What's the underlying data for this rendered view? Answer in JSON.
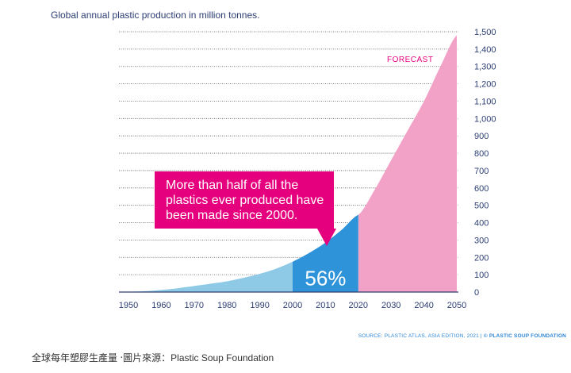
{
  "chart_data": {
    "type": "area",
    "title": "Global annual plastic production in million tonnes.",
    "x_ticks": [
      1950,
      1960,
      1970,
      1980,
      1990,
      2000,
      2010,
      2020,
      2030,
      2040,
      2050
    ],
    "y_ticks": [
      0,
      100,
      200,
      300,
      400,
      500,
      600,
      700,
      800,
      900,
      "1,000",
      "1,100",
      "1,200",
      "1,300",
      "1,400",
      "1,500"
    ],
    "xlim": [
      1950,
      2050
    ],
    "ylim": [
      0,
      1500
    ],
    "y_axis_position": "right",
    "grid": "horizontal dotted",
    "series": [
      {
        "x": [
          1950,
          1955,
          1960,
          1965,
          1970,
          1975,
          1980,
          1985,
          1990,
          1995,
          2000,
          2005,
          2010,
          2015,
          2020
        ],
        "values": [
          2,
          5,
          12,
          22,
          35,
          48,
          62,
          82,
          105,
          135,
          175,
          225,
          285,
          360,
          445
        ]
      },
      {
        "x": [
          2020,
          2025,
          2030,
          2035,
          2040,
          2045,
          2050
        ],
        "values": [
          445,
          590,
          760,
          930,
          1100,
          1300,
          1480
        ]
      }
    ],
    "highlight_range": [
      2000,
      2020
    ],
    "highlight_label": "56%",
    "forecast_label": "FORECAST",
    "annotation": "More than half of all the plastics ever produced have been made since 2000.",
    "colors": {
      "historical": "#8ec9e6",
      "highlight": "#2e93d8",
      "forecast": "#f2a2c6",
      "callout": "#e5007e",
      "axis_text": "#2c3e73",
      "grid": "#555555",
      "forecast_text": "#e5007e"
    }
  },
  "source": {
    "text": "SOURCE: PLASTIC ATLAS, ASIA EDITION, 2021",
    "sep": "|",
    "credit": "© PLASTIC SOUP FOUNDATION"
  },
  "caption": "全球每年塑膠生產量 ‧圖片來源：Plastic Soup Foundation"
}
